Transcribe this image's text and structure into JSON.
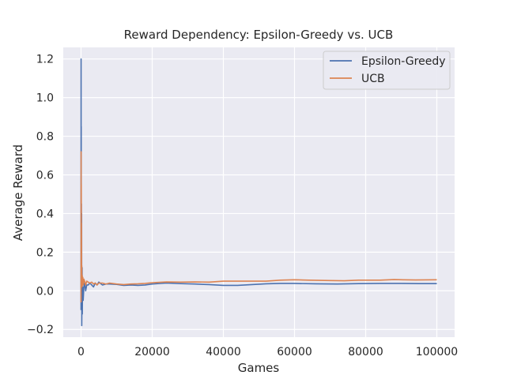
{
  "chart_data": {
    "type": "line",
    "title": "Reward Dependency: Epsilon-Greedy vs. UCB",
    "xlabel": "Games",
    "ylabel": "Average Reward",
    "xlim": [
      -5000,
      105000
    ],
    "ylim": [
      -0.24,
      1.26
    ],
    "xticks": [
      0,
      20000,
      40000,
      60000,
      80000,
      100000
    ],
    "yticks": [
      -0.2,
      0.0,
      0.2,
      0.4,
      0.6,
      0.8,
      1.0,
      1.2
    ],
    "xtick_labels": [
      "0",
      "20000",
      "40000",
      "60000",
      "80000",
      "100000"
    ],
    "ytick_labels": [
      "−0.2",
      "0.0",
      "0.2",
      "0.4",
      "0.6",
      "0.8",
      "1.0",
      "1.2"
    ],
    "grid": true,
    "legend_position": "top-right",
    "background": "#eaeaf2",
    "series": [
      {
        "name": "Epsilon-Greedy",
        "color": "#4c72b0",
        "points": [
          [
            0,
            -0.1
          ],
          [
            15,
            1.2
          ],
          [
            30,
            0.35
          ],
          [
            50,
            0.85
          ],
          [
            70,
            -0.05
          ],
          [
            100,
            0.45
          ],
          [
            130,
            -0.08
          ],
          [
            160,
            0.4
          ],
          [
            200,
            -0.18
          ],
          [
            250,
            -0.05
          ],
          [
            300,
            0.12
          ],
          [
            350,
            -0.12
          ],
          [
            400,
            -0.02
          ],
          [
            500,
            0.02
          ],
          [
            600,
            -0.05
          ],
          [
            800,
            0.02
          ],
          [
            1000,
            0.04
          ],
          [
            1300,
            0.0
          ],
          [
            1600,
            0.03
          ],
          [
            2000,
            0.03
          ],
          [
            2500,
            0.04
          ],
          [
            3000,
            0.03
          ],
          [
            3500,
            0.02
          ],
          [
            4000,
            0.04
          ],
          [
            4500,
            0.03
          ],
          [
            5000,
            0.045
          ],
          [
            6000,
            0.03
          ],
          [
            7000,
            0.035
          ],
          [
            8000,
            0.035
          ],
          [
            10000,
            0.033
          ],
          [
            12000,
            0.028
          ],
          [
            14000,
            0.03
          ],
          [
            16000,
            0.028
          ],
          [
            18000,
            0.03
          ],
          [
            20000,
            0.035
          ],
          [
            24000,
            0.04
          ],
          [
            28000,
            0.037
          ],
          [
            32000,
            0.035
          ],
          [
            36000,
            0.032
          ],
          [
            40000,
            0.028
          ],
          [
            44000,
            0.028
          ],
          [
            48000,
            0.032
          ],
          [
            52000,
            0.036
          ],
          [
            56000,
            0.038
          ],
          [
            60000,
            0.038
          ],
          [
            66000,
            0.036
          ],
          [
            72000,
            0.035
          ],
          [
            78000,
            0.037
          ],
          [
            84000,
            0.038
          ],
          [
            90000,
            0.038
          ],
          [
            95000,
            0.037
          ],
          [
            100000,
            0.037
          ]
        ]
      },
      {
        "name": "UCB",
        "color": "#dd8452",
        "points": [
          [
            0,
            -0.06
          ],
          [
            20,
            0.72
          ],
          [
            40,
            0.2
          ],
          [
            60,
            0.55
          ],
          [
            90,
            0.1
          ],
          [
            120,
            0.35
          ],
          [
            160,
            0.05
          ],
          [
            200,
            0.13
          ],
          [
            260,
            0.02
          ],
          [
            320,
            0.08
          ],
          [
            400,
            0.04
          ],
          [
            500,
            0.07
          ],
          [
            600,
            0.03
          ],
          [
            800,
            0.06
          ],
          [
            1000,
            0.05
          ],
          [
            1300,
            0.03
          ],
          [
            1600,
            0.05
          ],
          [
            2000,
            0.045
          ],
          [
            2500,
            0.04
          ],
          [
            3000,
            0.045
          ],
          [
            3500,
            0.035
          ],
          [
            4000,
            0.04
          ],
          [
            4500,
            0.03
          ],
          [
            5000,
            0.04
          ],
          [
            6000,
            0.04
          ],
          [
            7000,
            0.035
          ],
          [
            8000,
            0.04
          ],
          [
            10000,
            0.035
          ],
          [
            12000,
            0.032
          ],
          [
            14000,
            0.035
          ],
          [
            16000,
            0.036
          ],
          [
            18000,
            0.038
          ],
          [
            20000,
            0.042
          ],
          [
            24000,
            0.046
          ],
          [
            28000,
            0.045
          ],
          [
            32000,
            0.046
          ],
          [
            36000,
            0.045
          ],
          [
            40000,
            0.05
          ],
          [
            46000,
            0.05
          ],
          [
            52000,
            0.05
          ],
          [
            56000,
            0.055
          ],
          [
            60000,
            0.057
          ],
          [
            64000,
            0.055
          ],
          [
            70000,
            0.053
          ],
          [
            74000,
            0.052
          ],
          [
            78000,
            0.055
          ],
          [
            84000,
            0.055
          ],
          [
            88000,
            0.058
          ],
          [
            94000,
            0.056
          ],
          [
            100000,
            0.057
          ]
        ]
      }
    ]
  }
}
